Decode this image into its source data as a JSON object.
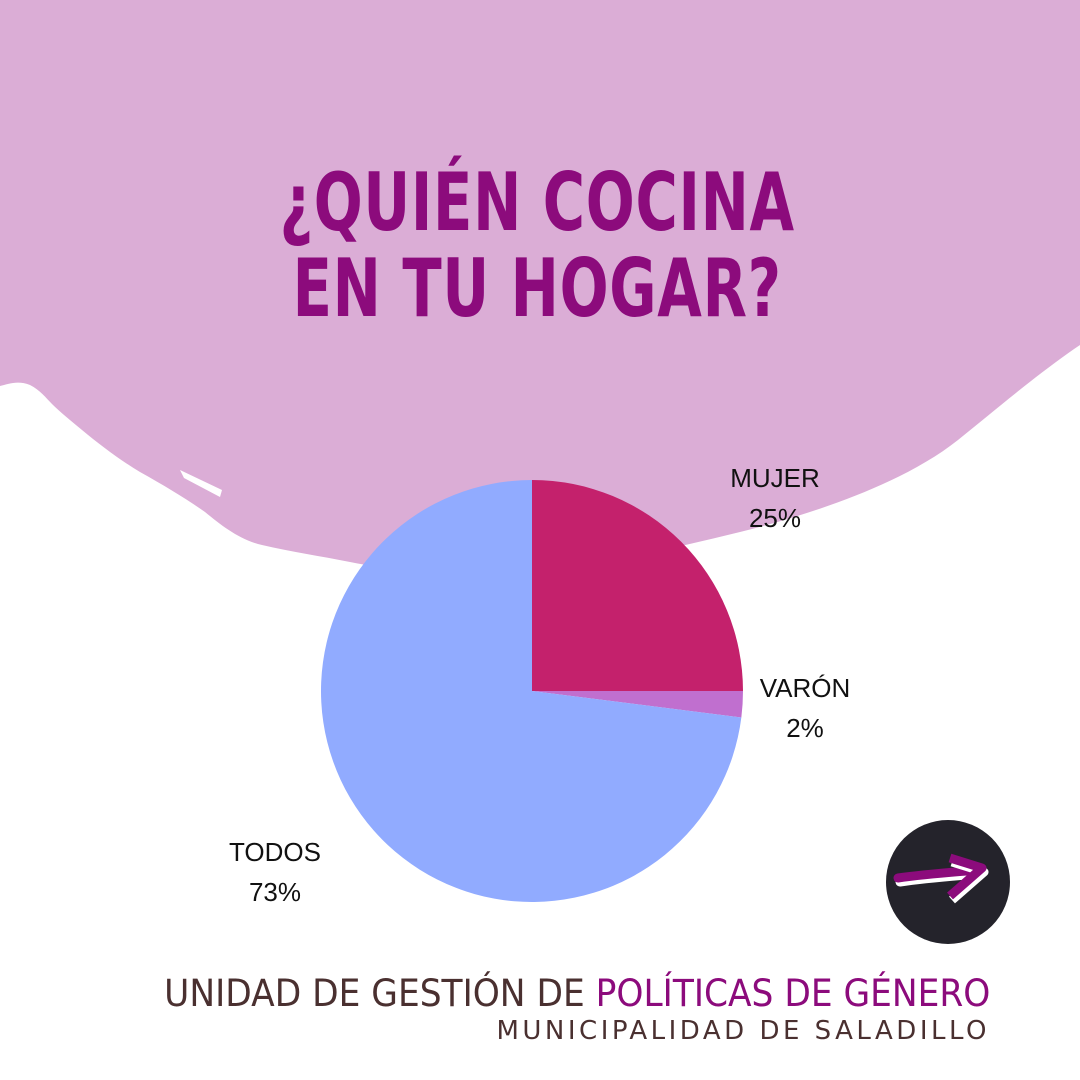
{
  "title": {
    "line1": "¿QUIÉN COCINA",
    "line2": "EN TU HOGAR?"
  },
  "chart_data": {
    "type": "pie",
    "slices": [
      {
        "label": "MUJER",
        "value": 25,
        "display": "25%",
        "color": "#c4216c"
      },
      {
        "label": "VARÓN",
        "value": 2,
        "display": "2%",
        "color": "#c06fcf"
      },
      {
        "label": "TODOS",
        "value": 73,
        "display": "73%",
        "color": "#91abff"
      }
    ],
    "start": "12 o'clock",
    "direction": "clockwise"
  },
  "footer": {
    "org_part1": "UNIDAD DE GESTIÓN DE ",
    "org_part2": "POLÍTICAS DE GÉNERO",
    "subtitle": "MUNICIPALIDAD DE SALADILLO"
  },
  "colors": {
    "background_blob": "#dbadd6",
    "title": "#8c0b7c",
    "footer_text": "#4a3030",
    "logo_circle": "#24232b",
    "logo_arrow": "#8c0b7c"
  },
  "logo": {
    "icon": "arrow-right-icon"
  }
}
